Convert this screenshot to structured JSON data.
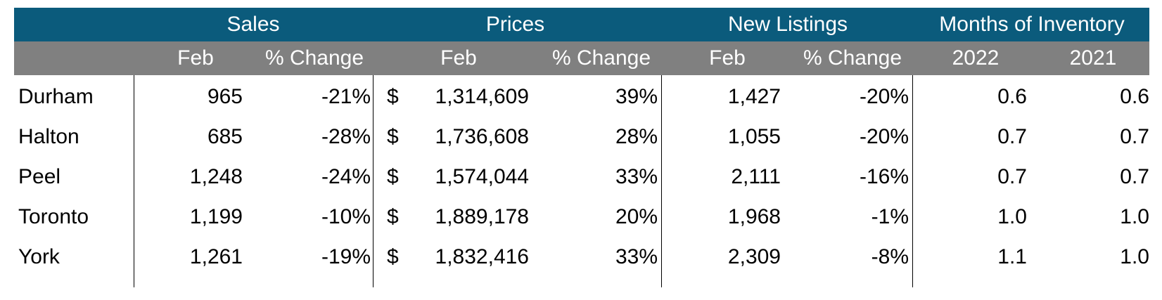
{
  "chart_data": {
    "type": "table",
    "group_headers": [
      "Sales",
      "Prices",
      "New Listings",
      "Months of Inventory"
    ],
    "sub_headers": [
      "Feb",
      "% Change",
      "Feb",
      "% Change",
      "Feb",
      "% Change",
      "2022",
      "2021"
    ],
    "currency_symbol": "$",
    "rows": [
      {
        "region": "Durham",
        "cells": [
          "965",
          "-21%",
          "1,314,609",
          "39%",
          "1,427",
          "-20%",
          "0.6",
          "0.6"
        ]
      },
      {
        "region": "Halton",
        "cells": [
          "685",
          "-28%",
          "1,736,608",
          "28%",
          "1,055",
          "-20%",
          "0.7",
          "0.7"
        ]
      },
      {
        "region": "Peel",
        "cells": [
          "1,248",
          "-24%",
          "1,574,044",
          "33%",
          "2,111",
          "-16%",
          "0.7",
          "0.7"
        ]
      },
      {
        "region": "Toronto",
        "cells": [
          "1,199",
          "-10%",
          "1,889,178",
          "20%",
          "1,968",
          "-1%",
          "1.0",
          "1.0"
        ]
      },
      {
        "region": "York",
        "cells": [
          "1,261",
          "-19%",
          "1,832,416",
          "33%",
          "2,309",
          "-8%",
          "1.1",
          "1.0"
        ]
      }
    ]
  },
  "colors": {
    "header_top": "#0b5b7c",
    "header_sub": "#808080",
    "header_text": "#ffffff",
    "body_text": "#000000"
  }
}
